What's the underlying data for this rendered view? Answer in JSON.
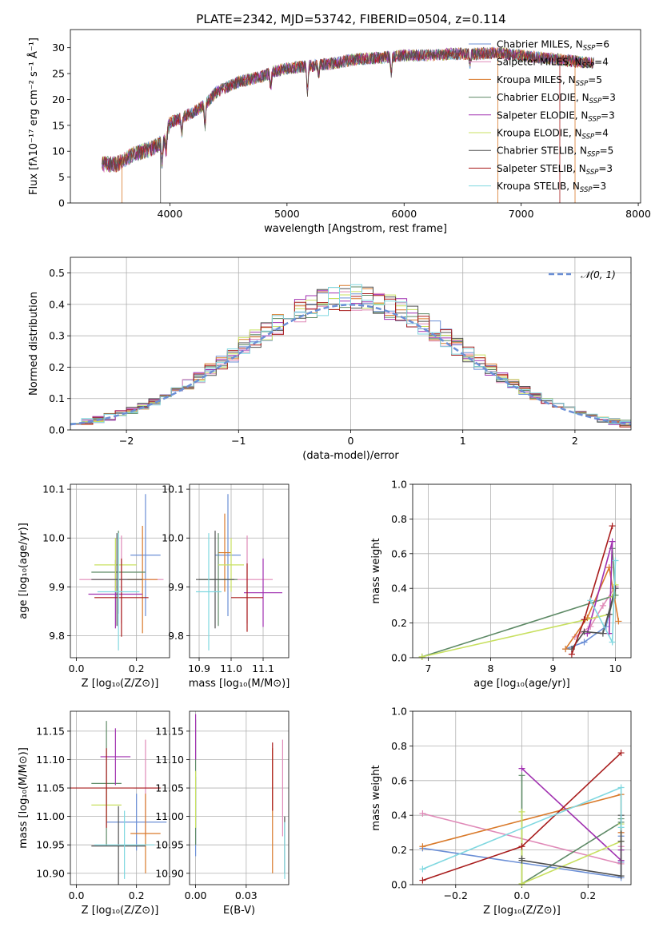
{
  "title": "PLATE=2342, MJD=53742, FIBERID=0504, z=0.114",
  "models": [
    {
      "name": "Chabrier MILES, N",
      "sub": "SSP",
      "suffix": "=6",
      "color": "#6b8fd6"
    },
    {
      "name": "Salpeter MILES, N",
      "sub": "SSP",
      "suffix": "=4",
      "color": "#e08ab8"
    },
    {
      "name": "Kroupa MILES, N",
      "sub": "SSP",
      "suffix": "=5",
      "color": "#d97a2b"
    },
    {
      "name": "Chabrier ELODIE, N",
      "sub": "SSP",
      "suffix": "=3",
      "color": "#5e8a66"
    },
    {
      "name": "Salpeter ELODIE, N",
      "sub": "SSP",
      "suffix": "=3",
      "color": "#a030b0"
    },
    {
      "name": "Kroupa ELODIE, N",
      "sub": "SSP",
      "suffix": "=4",
      "color": "#c8e060"
    },
    {
      "name": "Chabrier STELIB, N",
      "sub": "SSP",
      "suffix": "=5",
      "color": "#505050"
    },
    {
      "name": "Salpeter STELIB, N",
      "sub": "SSP",
      "suffix": "=3",
      "color": "#a81c1c"
    },
    {
      "name": "Kroupa STELIB, N",
      "sub": "SSP",
      "suffix": "=3",
      "color": "#80d8e0"
    }
  ],
  "chart_data": [
    {
      "type": "line",
      "id": "spectrum",
      "xlabel": "wavelength [Angstrom, rest frame]",
      "ylabel": "Flux [fλ10⁻¹⁷ erg cm⁻² s⁻¹ Å⁻¹]",
      "xlim": [
        3150,
        8020
      ],
      "ylim": [
        0,
        33.5
      ],
      "xticks": [
        4000,
        5000,
        6000,
        7000,
        8000
      ],
      "yticks": [
        0,
        5,
        10,
        15,
        20,
        25,
        30
      ],
      "x_range": [
        3420,
        7620
      ],
      "continuum": {
        "x": [
          3420,
          3550,
          3700,
          3850,
          3950,
          4000,
          4100,
          4200,
          4300,
          4400,
          4500,
          4600,
          4700,
          4800,
          4900,
          5000,
          5200,
          5400,
          5600,
          5800,
          6000,
          6200,
          6400,
          6600,
          6800,
          7000,
          7200,
          7400,
          7620
        ],
        "y": [
          7.5,
          7.5,
          9.5,
          10.5,
          12.0,
          15.5,
          16.5,
          17.5,
          19.0,
          21.5,
          22.5,
          23.5,
          24.0,
          24.5,
          25.5,
          26.0,
          26.5,
          27.0,
          27.8,
          28.0,
          28.5,
          28.5,
          28.8,
          28.8,
          29.0,
          28.5,
          28.0,
          27.5,
          27.0
        ]
      },
      "gridlines": false
    },
    {
      "type": "histogram",
      "id": "residuals",
      "xlabel": "(data-model)/error",
      "ylabel": "Normed distribution",
      "xlim": [
        -2.5,
        2.5
      ],
      "ylim": [
        0,
        0.55
      ],
      "xticks": [
        -2,
        -1,
        0,
        1,
        2
      ],
      "yticks": [
        0.0,
        0.1,
        0.2,
        0.3,
        0.4,
        0.5
      ],
      "bin_width": 0.1,
      "reference": {
        "label": "𝒩(0, 1)",
        "mean": 0,
        "sigma": 1
      },
      "gridlines": true
    },
    {
      "type": "scatter",
      "id": "age-vs-Z",
      "xlabel": "Z [log₁₀(Z/Z⊙)]",
      "ylabel": "age  [log₁₀(age/yr)]",
      "xlim": [
        -0.02,
        0.31
      ],
      "ylim": [
        9.755,
        10.11
      ],
      "xticks": [
        0.0,
        0.2
      ],
      "yticks": [
        9.8,
        9.9,
        10.0,
        10.1
      ],
      "points": [
        {
          "x": 0.23,
          "y": 9.965,
          "xerr": 0.05,
          "yerr": 0.125,
          "model": 0
        },
        {
          "x": 0.15,
          "y": 9.915,
          "xerr": 0.14,
          "yerr": 0.09,
          "model": 1
        },
        {
          "x": 0.22,
          "y": 9.915,
          "xerr": 0.05,
          "yerr": 0.11,
          "model": 2
        },
        {
          "x": 0.14,
          "y": 9.93,
          "xerr": 0.09,
          "yerr": 0.085,
          "model": 3
        },
        {
          "x": 0.13,
          "y": 9.885,
          "xerr": 0.09,
          "yerr": 0.07,
          "model": 4
        },
        {
          "x": 0.13,
          "y": 9.945,
          "xerr": 0.07,
          "yerr": 0.055,
          "model": 5
        },
        {
          "x": 0.135,
          "y": 9.915,
          "xerr": 0.085,
          "yerr": 0.095,
          "model": 6
        },
        {
          "x": 0.15,
          "y": 9.878,
          "xerr": 0.09,
          "yerr": 0.08,
          "model": 7
        },
        {
          "x": 0.14,
          "y": 9.89,
          "xerr": 0.07,
          "yerr": 0.12,
          "model": 8
        }
      ],
      "gridlines": true
    },
    {
      "type": "scatter",
      "id": "age-vs-mass",
      "xlabel": "mass [log₁₀(M/M⊙)]",
      "ylabel": "",
      "xlim": [
        10.87,
        11.18
      ],
      "ylim": [
        9.755,
        10.11
      ],
      "xticks": [
        10.9,
        11.0,
        11.1
      ],
      "yticks": [
        9.8,
        9.9,
        10.0,
        10.1
      ],
      "points": [
        {
          "x": 10.99,
          "y": 9.965,
          "xerr": 0.04,
          "yerr": 0.125,
          "model": 0
        },
        {
          "x": 11.05,
          "y": 9.915,
          "xerr": 0.08,
          "yerr": 0.09,
          "model": 1
        },
        {
          "x": 10.98,
          "y": 9.97,
          "xerr": 0.02,
          "yerr": 0.08,
          "model": 2
        },
        {
          "x": 10.96,
          "y": 9.915,
          "xerr": 0.06,
          "yerr": 0.095,
          "model": 3
        },
        {
          "x": 11.1,
          "y": 9.888,
          "xerr": 0.06,
          "yerr": 0.07,
          "model": 4
        },
        {
          "x": 11.0,
          "y": 9.945,
          "xerr": 0.04,
          "yerr": 0.055,
          "model": 5
        },
        {
          "x": 10.95,
          "y": 9.915,
          "xerr": 0.06,
          "yerr": 0.1,
          "model": 6
        },
        {
          "x": 11.05,
          "y": 9.878,
          "xerr": 0.05,
          "yerr": 0.07,
          "model": 7
        },
        {
          "x": 10.93,
          "y": 9.89,
          "xerr": 0.04,
          "yerr": 0.12,
          "model": 8
        }
      ],
      "gridlines": true
    },
    {
      "type": "line",
      "id": "massweight-vs-age",
      "xlabel": "age  [log₁₀(age/yr)]",
      "ylabel": "mass weight",
      "xlim": [
        6.75,
        10.25
      ],
      "ylim": [
        0.0,
        1.0
      ],
      "xticks": [
        7,
        8,
        9,
        10
      ],
      "yticks": [
        0.0,
        0.2,
        0.4,
        0.6,
        0.8,
        1.0
      ],
      "series": [
        {
          "model": 0,
          "x": [
            9.2,
            9.5,
            9.85,
            10.0
          ],
          "y": [
            0.05,
            0.09,
            0.18,
            0.4
          ]
        },
        {
          "model": 1,
          "x": [
            9.35,
            9.6,
            9.8,
            10.0
          ],
          "y": [
            0.12,
            0.18,
            0.3,
            0.41
          ]
        },
        {
          "model": 2,
          "x": [
            9.2,
            9.55,
            9.9,
            10.05
          ],
          "y": [
            0.05,
            0.23,
            0.52,
            0.21
          ]
        },
        {
          "model": 3,
          "x": [
            6.9,
            10.0,
            9.95
          ],
          "y": [
            0.005,
            0.36,
            0.63
          ]
        },
        {
          "model": 4,
          "x": [
            9.55,
            9.95,
            9.9
          ],
          "y": [
            0.14,
            0.67,
            0.14
          ]
        },
        {
          "model": 5,
          "x": [
            6.9,
            9.9,
            10.0,
            9.95
          ],
          "y": [
            0.005,
            0.25,
            0.42,
            0.35
          ]
        },
        {
          "model": 6,
          "x": [
            9.3,
            9.5,
            9.8,
            10.0,
            9.9
          ],
          "y": [
            0.05,
            0.15,
            0.14,
            0.4,
            0.25
          ]
        },
        {
          "model": 7,
          "x": [
            9.3,
            9.5,
            9.95
          ],
          "y": [
            0.02,
            0.22,
            0.76
          ]
        },
        {
          "model": 8,
          "x": [
            9.6,
            9.95,
            10.0
          ],
          "y": [
            0.33,
            0.09,
            0.56
          ]
        }
      ],
      "gridlines": true
    },
    {
      "type": "scatter",
      "id": "mass-vs-Z",
      "xlabel": "Z [log₁₀(Z/Z⊙)]",
      "ylabel": "mass [log₁₀(M/M⊙)]",
      "xlim": [
        -0.02,
        0.31
      ],
      "ylim": [
        10.88,
        11.185
      ],
      "xticks": [
        0.0,
        0.2
      ],
      "yticks": [
        10.9,
        10.95,
        11.0,
        11.05,
        11.1,
        11.15
      ],
      "points": [
        {
          "x": 0.2,
          "y": 10.99,
          "xerr": 0.1,
          "yerr": 0.05,
          "model": 0
        },
        {
          "x": 0.23,
          "y": 11.05,
          "xerr": 0.04,
          "yerr": 0.085,
          "model": 1
        },
        {
          "x": 0.23,
          "y": 10.97,
          "xerr": 0.05,
          "yerr": 0.07,
          "model": 2
        },
        {
          "x": 0.1,
          "y": 11.058,
          "xerr": 0.05,
          "yerr": 0.11,
          "model": 3
        },
        {
          "x": 0.13,
          "y": 11.105,
          "xerr": 0.05,
          "yerr": 0.05,
          "model": 4
        },
        {
          "x": 0.1,
          "y": 11.02,
          "xerr": 0.05,
          "yerr": 0.03,
          "model": 5
        },
        {
          "x": 0.14,
          "y": 10.948,
          "xerr": 0.09,
          "yerr": 0.07,
          "model": 6
        },
        {
          "x": 0.1,
          "y": 11.05,
          "xerr": 0.18,
          "yerr": 0.07,
          "model": 7
        },
        {
          "x": 0.16,
          "y": 10.95,
          "xerr": 0.1,
          "yerr": 0.06,
          "model": 8
        }
      ],
      "gridlines": true
    },
    {
      "type": "scatter",
      "id": "mass-vs-ebv",
      "xlabel": "E(B-V)",
      "ylabel": "",
      "xlim": [
        -0.003,
        0.046
      ],
      "ylim": [
        10.88,
        11.185
      ],
      "xticks": [
        0.0,
        0.025
      ],
      "yticks": [
        10.9,
        10.95,
        11.0,
        11.05,
        11.1,
        11.15
      ],
      "points": [
        {
          "x": 0.0,
          "y": 11.0,
          "xerr": 0,
          "yerr": 0.07,
          "model": 0
        },
        {
          "x": 0.043,
          "y": 11.05,
          "xerr": 0,
          "yerr": 0.085,
          "model": 1
        },
        {
          "x": 0.038,
          "y": 11.01,
          "xerr": 0,
          "yerr": 0.11,
          "model": 2
        },
        {
          "x": 0.0,
          "y": 11.06,
          "xerr": 0,
          "yerr": 0.11,
          "model": 3
        },
        {
          "x": 0.0,
          "y": 11.14,
          "xerr": 0,
          "yerr": 0.04,
          "model": 4
        },
        {
          "x": 0.0,
          "y": 11.03,
          "xerr": 0,
          "yerr": 0.05,
          "model": 5
        },
        {
          "x": 0.044,
          "y": 10.95,
          "xerr": 0,
          "yerr": 0.05,
          "model": 6
        },
        {
          "x": 0.038,
          "y": 11.07,
          "xerr": 0,
          "yerr": 0.06,
          "model": 7
        },
        {
          "x": 0.044,
          "y": 10.94,
          "xerr": 0,
          "yerr": 0.05,
          "model": 8
        }
      ],
      "gridlines": true
    },
    {
      "type": "line",
      "id": "massweight-vs-Z",
      "xlabel": "Z [log₁₀(Z/Z⊙)]",
      "ylabel": "mass weight",
      "xlim": [
        -0.33,
        0.33
      ],
      "ylim": [
        0.0,
        1.0
      ],
      "xticks": [
        -0.2,
        0.0,
        0.2
      ],
      "yticks": [
        0.0,
        0.2,
        0.4,
        0.6,
        0.8,
        1.0
      ],
      "series": [
        {
          "model": 0,
          "x": [
            -0.3,
            0.3,
            0.3,
            0.3
          ],
          "y": [
            0.21,
            0.04,
            0.13,
            0.28
          ]
        },
        {
          "model": 1,
          "x": [
            -0.3,
            0.3,
            0.3,
            0.3
          ],
          "y": [
            0.41,
            0.12,
            0.22,
            0.3
          ]
        },
        {
          "model": 2,
          "x": [
            -0.3,
            0.3,
            0.3
          ],
          "y": [
            0.22,
            0.52,
            0.3
          ]
        },
        {
          "model": 3,
          "x": [
            0.0,
            0.0,
            0.3,
            0.3
          ],
          "y": [
            0.63,
            0.005,
            0.36,
            0.38
          ]
        },
        {
          "model": 4,
          "x": [
            0.0,
            0.3,
            0.3
          ],
          "y": [
            0.67,
            0.14,
            0.2
          ]
        },
        {
          "model": 5,
          "x": [
            0.0,
            0.0,
            0.3,
            0.3
          ],
          "y": [
            0.42,
            0.005,
            0.25,
            0.35
          ]
        },
        {
          "model": 6,
          "x": [
            0.0,
            0.0,
            0.3,
            0.3,
            0.3
          ],
          "y": [
            0.15,
            0.14,
            0.05,
            0.25,
            0.4
          ]
        },
        {
          "model": 7,
          "x": [
            -0.3,
            0.0,
            0.3
          ],
          "y": [
            0.025,
            0.22,
            0.76
          ]
        },
        {
          "model": 8,
          "x": [
            -0.3,
            0.3,
            0.3
          ],
          "y": [
            0.09,
            0.56,
            0.33
          ]
        }
      ],
      "gridlines": true
    }
  ]
}
